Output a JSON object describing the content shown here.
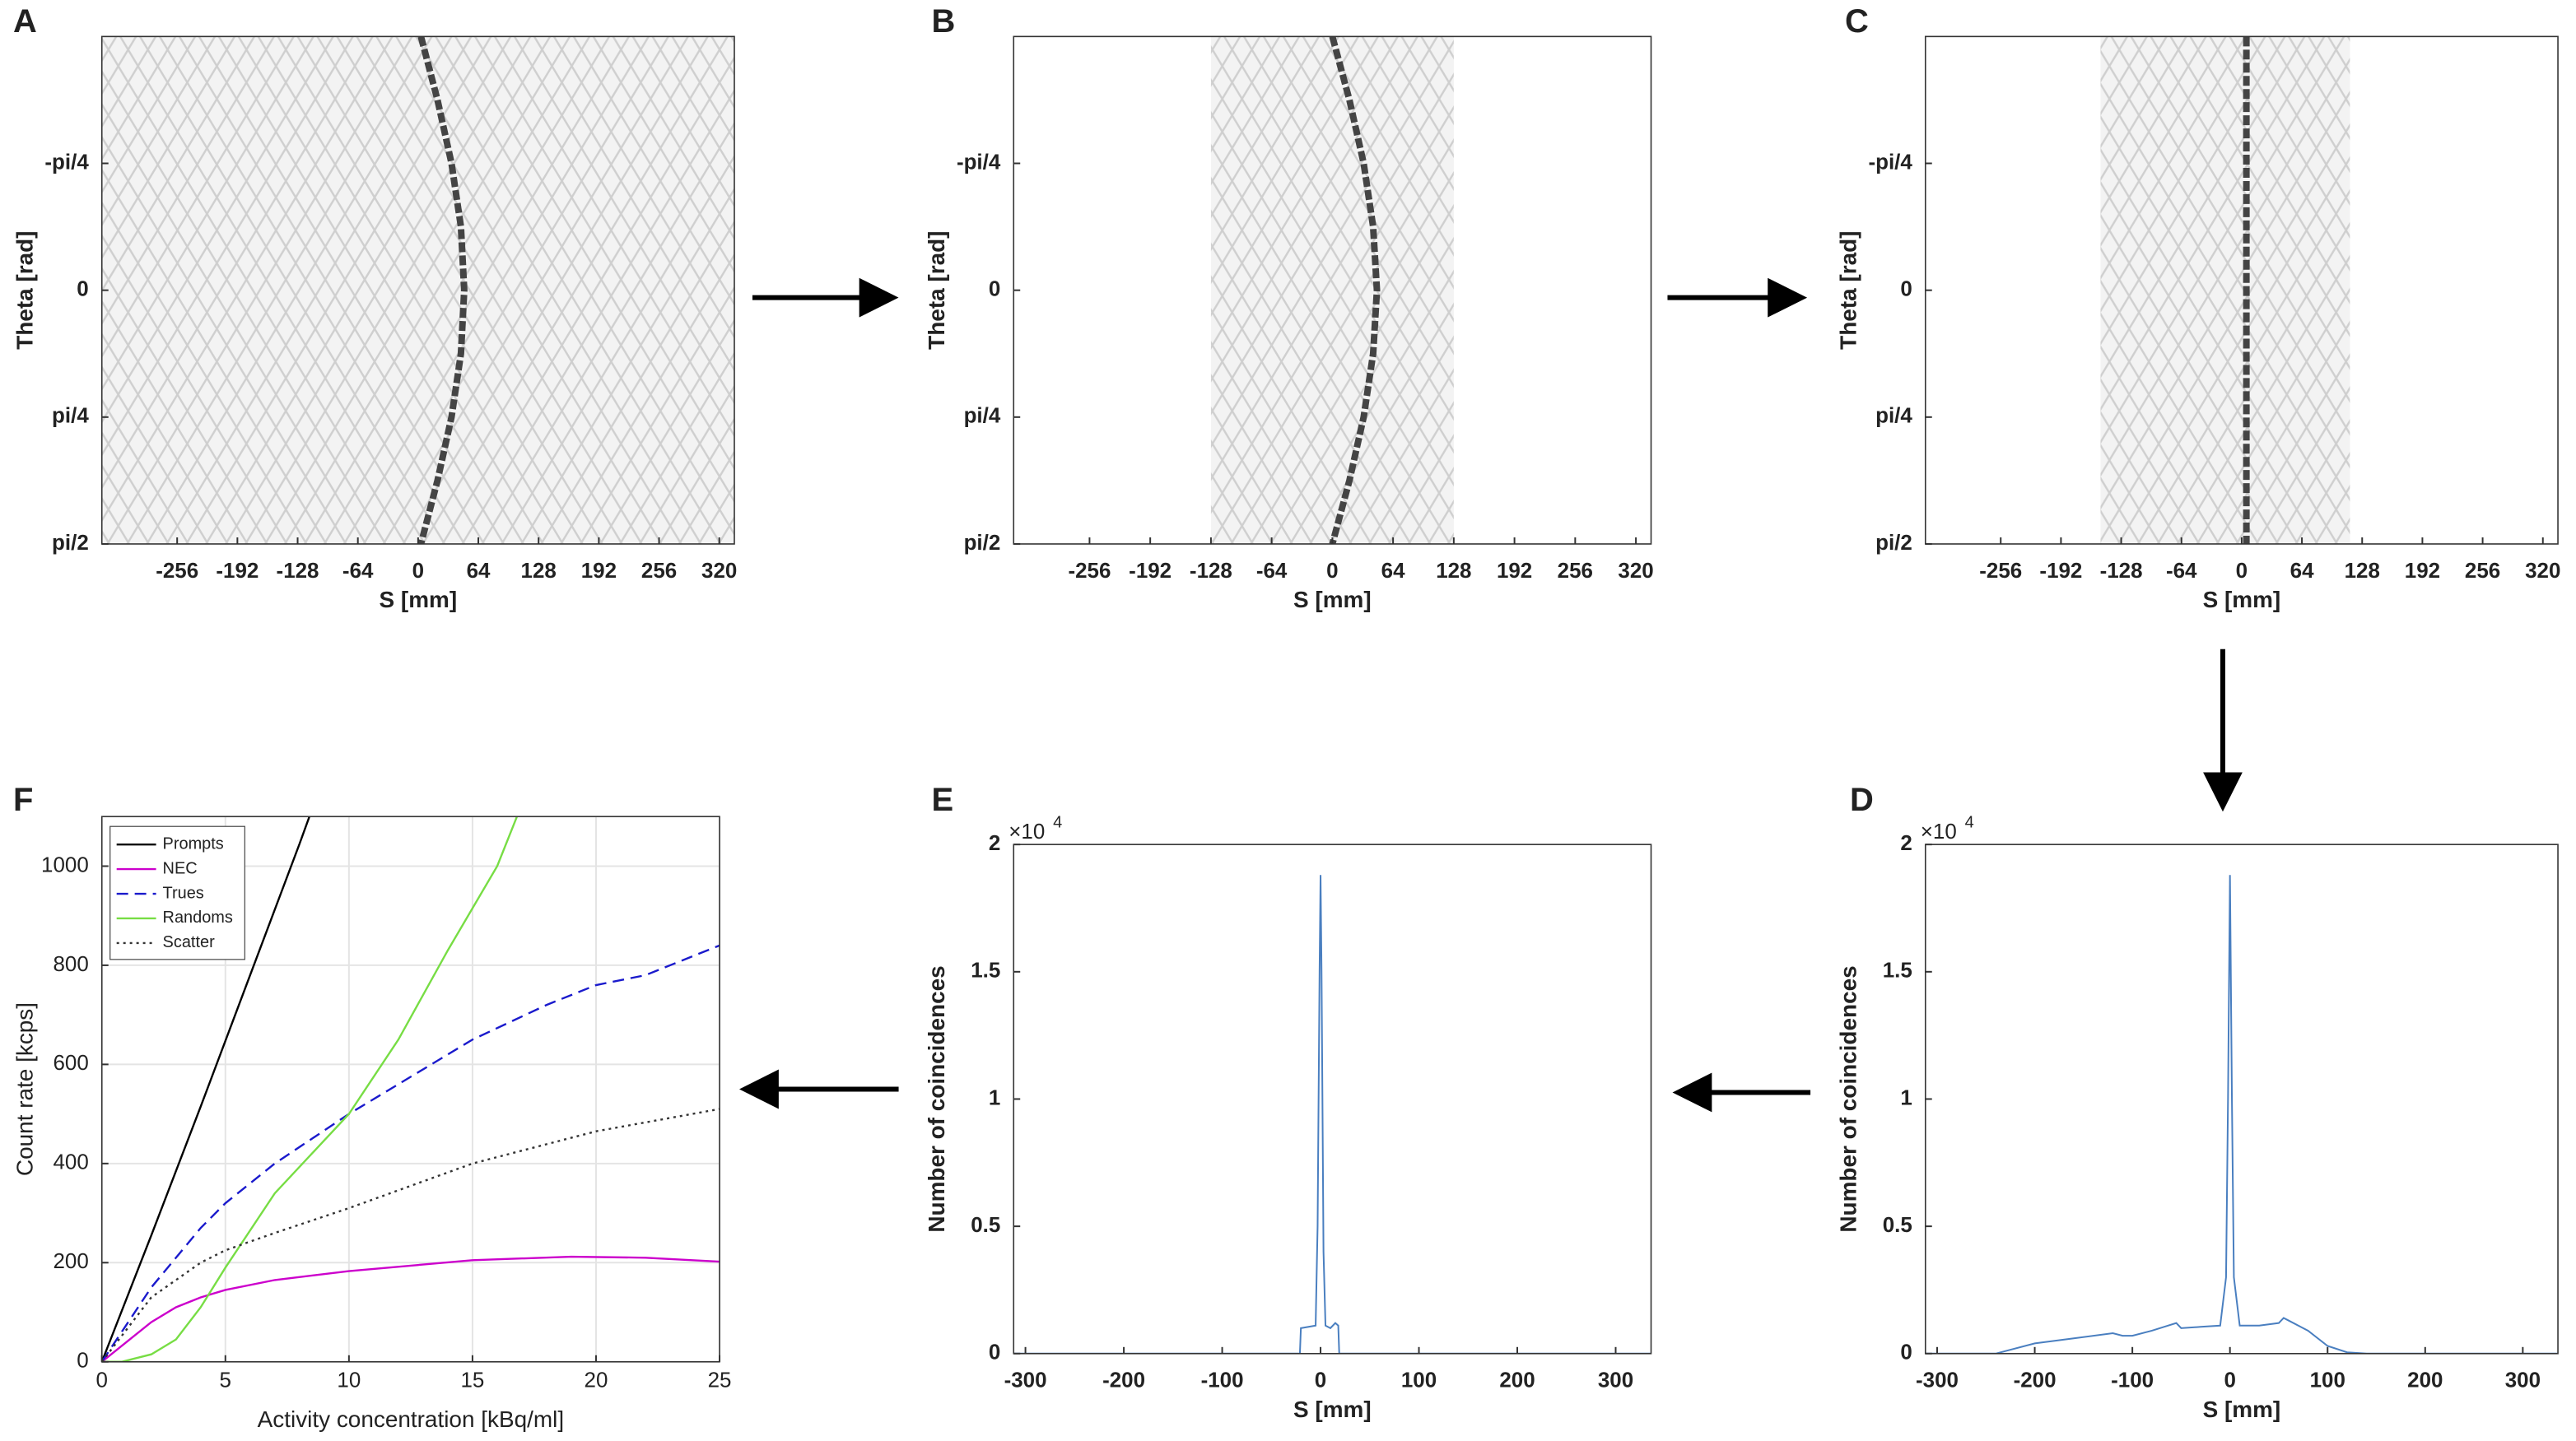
{
  "chart_data": [
    {
      "type": "sinogram",
      "panel": "A",
      "xlabel": "S [mm]",
      "ylabel": "Theta [rad]",
      "xlim": [
        -336,
        336
      ],
      "ylim": [
        -1.5708,
        1.5708
      ],
      "y_reversed": true,
      "xticks": [
        -256,
        -192,
        -128,
        -64,
        0,
        64,
        128,
        192,
        256,
        320
      ],
      "yticks": [
        {
          "value": -0.7854,
          "label": "-pi/4"
        },
        0,
        {
          "value": 0.7854,
          "label": "pi/4"
        },
        {
          "value": 1.5708,
          "label": "pi/2"
        }
      ],
      "fov": [
        -336,
        336
      ],
      "color": "#444444",
      "curve": {
        "theta": [
          -1.5708,
          -1.1781,
          -0.7854,
          -0.3927,
          0,
          0.3927,
          0.7854,
          1.1781,
          1.5708
        ],
        "s": [
          3,
          20.6,
          35.5,
          45.5,
          49,
          45.5,
          35.5,
          20.6,
          3
        ]
      }
    },
    {
      "type": "sinogram",
      "panel": "B",
      "xlabel": "S [mm]",
      "ylabel": "Theta [rad]",
      "xlim": [
        -336,
        336
      ],
      "ylim": [
        -1.5708,
        1.5708
      ],
      "y_reversed": true,
      "xticks": [
        -256,
        -192,
        -128,
        -64,
        0,
        64,
        128,
        192,
        256,
        320
      ],
      "yticks": [
        {
          "value": -0.7854,
          "label": "-pi/4"
        },
        0,
        {
          "value": 0.7854,
          "label": "pi/4"
        },
        {
          "value": 1.5708,
          "label": "pi/2"
        }
      ],
      "fov": [
        -128,
        128
      ],
      "color": "#444444",
      "curve": {
        "theta": [
          -1.5708,
          -1.1781,
          -0.7854,
          -0.3927,
          0,
          0.3927,
          0.7854,
          1.1781,
          1.5708
        ],
        "s": [
          0,
          18,
          33,
          43,
          47,
          43,
          33,
          18,
          0
        ]
      }
    },
    {
      "type": "sinogram",
      "panel": "C",
      "xlabel": "S [mm]",
      "ylabel": "Theta [rad]",
      "xlim": [
        -336,
        336
      ],
      "ylim": [
        -1.5708,
        1.5708
      ],
      "y_reversed": true,
      "xticks": [
        -256,
        -192,
        -128,
        -64,
        0,
        64,
        128,
        192,
        256,
        320
      ],
      "yticks": [
        {
          "value": -0.7854,
          "label": "-pi/4"
        },
        0,
        {
          "value": 0.7854,
          "label": "pi/4"
        },
        {
          "value": 1.5708,
          "label": "pi/2"
        }
      ],
      "fov": [
        -150,
        115
      ],
      "color": "#444444",
      "curve": {
        "theta": [
          -1.5708,
          -1.1781,
          -0.7854,
          -0.3927,
          0,
          0.3927,
          0.7854,
          1.1781,
          1.5708
        ],
        "s": [
          5,
          5,
          5,
          5,
          5,
          5,
          5,
          5,
          5
        ]
      }
    },
    {
      "type": "line",
      "panel": "D",
      "xlabel": "S [mm]",
      "ylabel": "Number of coincidences",
      "exponent_base": "×10",
      "exponent": "4",
      "xlim": [
        -312,
        336
      ],
      "ylim": [
        0,
        20000
      ],
      "xticks": [
        -300,
        -200,
        -100,
        0,
        100,
        200,
        300
      ],
      "yticks": [
        0,
        {
          "value": 5000,
          "label": "0.5"
        },
        {
          "value": 10000,
          "label": "1"
        },
        {
          "value": 15000,
          "label": "1.5"
        },
        {
          "value": 20000,
          "label": "2"
        }
      ],
      "series": [
        {
          "color": "#4a7fc0",
          "x": [
            -312,
            -240,
            -200,
            -160,
            -120,
            -110,
            -100,
            -80,
            -55,
            -50,
            -30,
            -10,
            -4,
            -2,
            0,
            2,
            4,
            10,
            30,
            50,
            55,
            60,
            80,
            100,
            120,
            140,
            336
          ],
          "values": [
            0,
            0,
            400,
            600,
            800,
            700,
            700,
            900,
            1200,
            1000,
            1050,
            1100,
            3000,
            10000,
            18800,
            10000,
            3000,
            1100,
            1100,
            1200,
            1400,
            1300,
            900,
            300,
            50,
            0,
            0
          ]
        }
      ]
    },
    {
      "type": "line",
      "panel": "E",
      "xlabel": "S [mm]",
      "ylabel": "Number of coincidences",
      "exponent_base": "×10",
      "exponent": "4",
      "xlim": [
        -312,
        336
      ],
      "ylim": [
        0,
        20000
      ],
      "xticks": [
        -300,
        -200,
        -100,
        0,
        100,
        200,
        300
      ],
      "yticks": [
        0,
        {
          "value": 5000,
          "label": "0.5"
        },
        {
          "value": 10000,
          "label": "1"
        },
        {
          "value": 15000,
          "label": "1.5"
        },
        {
          "value": 20000,
          "label": "2"
        }
      ],
      "series": [
        {
          "color": "#4a7fc0",
          "x": [
            -312,
            -21,
            -20,
            -5,
            -3,
            -1,
            0,
            1,
            3,
            5,
            10,
            15,
            18,
            19,
            336
          ],
          "values": [
            0,
            0,
            1000,
            1100,
            5000,
            15000,
            18800,
            15000,
            4000,
            1100,
            1000,
            1200,
            1100,
            0,
            0
          ]
        }
      ]
    },
    {
      "type": "line",
      "panel": "F",
      "xlabel": "Activity concentration [kBq/ml]",
      "ylabel": "Count rate [kcps]",
      "grid": true,
      "legend": "upper left",
      "xlim": [
        0,
        25
      ],
      "ylim": [
        0,
        1100
      ],
      "xticks": [
        0,
        5,
        10,
        15,
        20,
        25
      ],
      "yticks": [
        0,
        200,
        400,
        600,
        800,
        1000
      ],
      "series": [
        {
          "name": "Prompts",
          "color": "#000000",
          "dash": "solid",
          "x": [
            0,
            2,
            4,
            6,
            8,
            8.4
          ],
          "values": [
            0,
            255,
            515,
            780,
            1045,
            1100
          ]
        },
        {
          "name": "NEC",
          "color": "#cc00cc",
          "dash": "solid",
          "x": [
            0,
            1,
            2,
            3,
            4,
            5,
            7,
            10,
            15,
            19,
            22,
            25
          ],
          "values": [
            0,
            40,
            80,
            110,
            130,
            145,
            165,
            183,
            205,
            212,
            210,
            202
          ]
        },
        {
          "name": "Trues",
          "color": "#1a1acc",
          "dash": "dashed",
          "x": [
            0,
            2,
            4,
            5,
            7,
            10,
            12,
            15,
            18,
            20,
            22,
            25
          ],
          "values": [
            0,
            150,
            270,
            320,
            400,
            500,
            560,
            650,
            720,
            760,
            780,
            840
          ]
        },
        {
          "name": "Randoms",
          "color": "#77dd44",
          "dash": "solid",
          "x": [
            0,
            0.8,
            2,
            3,
            4,
            5,
            7,
            10,
            12,
            14,
            16,
            16.8
          ],
          "values": [
            0,
            0,
            15,
            45,
            110,
            190,
            340,
            500,
            650,
            830,
            1000,
            1100
          ]
        },
        {
          "name": "Scatter",
          "color": "#333333",
          "dash": "dotted",
          "x": [
            0,
            2,
            4,
            5,
            7,
            10,
            15,
            20,
            25
          ],
          "values": [
            0,
            130,
            200,
            225,
            260,
            310,
            400,
            465,
            510
          ]
        }
      ]
    }
  ]
}
